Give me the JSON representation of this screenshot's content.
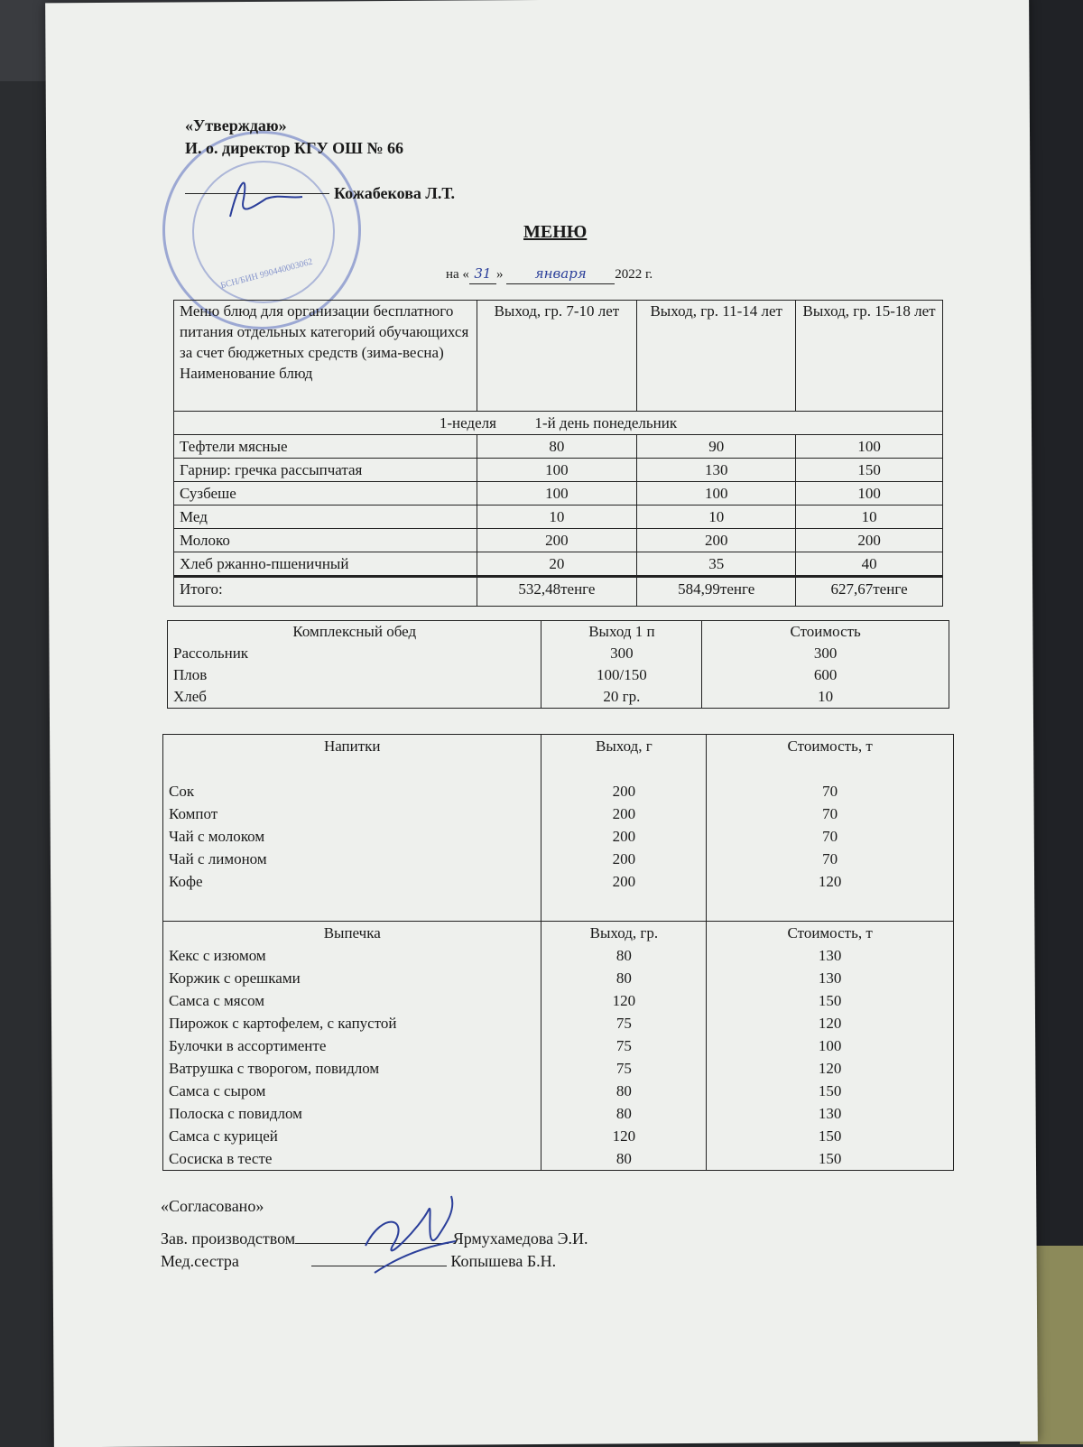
{
  "approval": {
    "title": "«Утверждаю»",
    "position": "И. о. директор КГУ ОШ № 66",
    "name": "Кожабекова  Л.Т.",
    "stamp_text": "БСН/БИН 990440003062"
  },
  "heading": {
    "title": "МЕНЮ",
    "date_prefix": "на «",
    "day": "31",
    "date_mid": "»",
    "month": "января",
    "year": "2022 г."
  },
  "main_table": {
    "header": [
      "Меню блюд для организации бесплатного питания отдельных категорий обучающихся за счет бюджетных средств (зима-весна) Наименование блюд",
      "Выход, гр. 7-10 лет",
      "Выход, гр. 11-14 лет",
      "Выход, гр. 15-18 лет"
    ],
    "week_row": "1-неделя          1-й день понедельник",
    "rows": [
      [
        "Тефтели мясные",
        "80",
        "90",
        "100"
      ],
      [
        "Гарнир: гречка рассыпчатая",
        "100",
        "130",
        "150"
      ],
      [
        "Сузбеше",
        "100",
        "100",
        "100"
      ],
      [
        "Мед",
        "10",
        "10",
        "10"
      ],
      [
        "Молоко",
        "200",
        "200",
        "200"
      ],
      [
        "Хлеб ржанно-пшеничный",
        "20",
        "35",
        "40"
      ]
    ],
    "total": [
      "Итого:",
      "532,48тенге",
      "584,99тенге",
      "627,67тенге"
    ]
  },
  "lunch_table": {
    "header": [
      "Комплексный обед",
      "Выход 1 п",
      "Стоимость"
    ],
    "rows": [
      [
        "Рассольник",
        "300",
        "300"
      ],
      [
        "Плов",
        "100/150",
        "600"
      ],
      [
        "Хлеб",
        "20 гр.",
        "10"
      ]
    ]
  },
  "drinks_table": {
    "header": [
      "Напитки",
      "Выход, г",
      "Стоимость, т"
    ],
    "rows": [
      [
        "Сок",
        "200",
        "70"
      ],
      [
        "Компот",
        "200",
        "70"
      ],
      [
        "Чай с молоком",
        "200",
        "70"
      ],
      [
        "Чай с лимоном",
        "200",
        "70"
      ],
      [
        "Кофе",
        "200",
        "120"
      ]
    ]
  },
  "bakery_table": {
    "header": [
      "Выпечка",
      "Выход, гр.",
      "Стоимость, т"
    ],
    "rows": [
      [
        "Кекс с изюмом",
        "80",
        "130"
      ],
      [
        "Коржик с орешками",
        "80",
        "130"
      ],
      [
        "Самса с мясом",
        "120",
        "150"
      ],
      [
        "Пирожок с картофелем, с капустой",
        "75",
        "120"
      ],
      [
        "Булочки в ассортименте",
        "75",
        "100"
      ],
      [
        "Ватрушка с творогом, повидлом",
        "75",
        "120"
      ],
      [
        "Самса с сыром",
        "80",
        "150"
      ],
      [
        "Полоска с повидлом",
        "80",
        "130"
      ],
      [
        "Самса с курицей",
        "120",
        "150"
      ],
      [
        "Сосиска в тесте",
        "80",
        "150"
      ]
    ]
  },
  "footer": {
    "title": "«Согласовано»",
    "role1": "Зав. производством",
    "name1": "Ярмухамедова Э.И.",
    "role2": "Мед.сестра",
    "name2": "Копышева Б.Н."
  }
}
